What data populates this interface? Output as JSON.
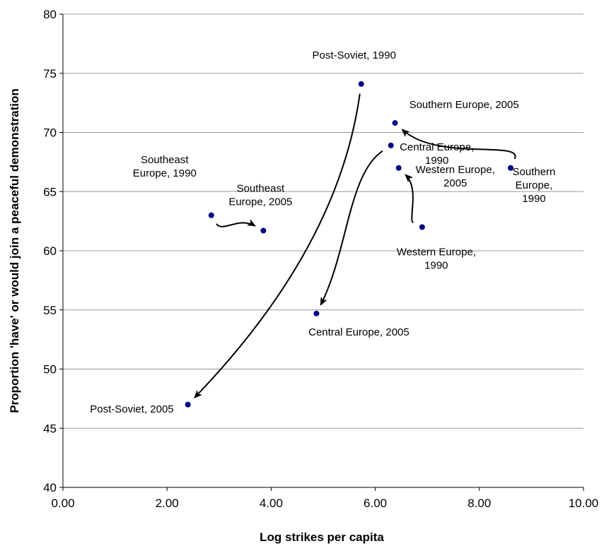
{
  "chart_data": {
    "type": "scatter",
    "xlabel": "Log strikes per capita",
    "ylabel": "Proportion 'have' or would join a peaceful demonstration",
    "xlim": [
      0,
      10
    ],
    "ylim": [
      40,
      80
    ],
    "xticks": [
      "0.00",
      "2.00",
      "4.00",
      "6.00",
      "8.00",
      "10.00"
    ],
    "yticks": [
      "40",
      "45",
      "50",
      "55",
      "60",
      "65",
      "70",
      "75",
      "80"
    ],
    "grid": "horizontal",
    "point_color": "#000080",
    "points": [
      {
        "label": "Post-Soviet, 1990",
        "x": 5.73,
        "y": 74.1
      },
      {
        "label": "Post-Soviet, 2005",
        "x": 2.4,
        "y": 47.0
      },
      {
        "label": "Southern Europe, 2005",
        "x": 6.38,
        "y": 70.8
      },
      {
        "label": "Southern Europe, 1990",
        "x": 8.6,
        "y": 67.0
      },
      {
        "label": "Central Europe, 1990",
        "x": 6.3,
        "y": 68.9
      },
      {
        "label": "Central Europe, 2005",
        "x": 4.87,
        "y": 54.7
      },
      {
        "label": "Western Europe, 2005",
        "x": 6.45,
        "y": 67.0
      },
      {
        "label": "Western Europe, 1990",
        "x": 6.9,
        "y": 62.0
      },
      {
        "label": "Southeast Europe, 1990",
        "x": 2.85,
        "y": 63.0
      },
      {
        "label": "Southeast Europe, 2005",
        "x": 3.85,
        "y": 61.7
      }
    ],
    "transitions": [
      {
        "from": "Post-Soviet, 1990",
        "to": "Post-Soviet, 2005"
      },
      {
        "from": "Southern Europe, 1990",
        "to": "Southern Europe, 2005"
      },
      {
        "from": "Central Europe, 1990",
        "to": "Central Europe, 2005"
      },
      {
        "from": "Western Europe, 1990",
        "to": "Western Europe, 2005"
      },
      {
        "from": "Southeast Europe, 1990",
        "to": "Southeast Europe, 2005"
      }
    ]
  }
}
